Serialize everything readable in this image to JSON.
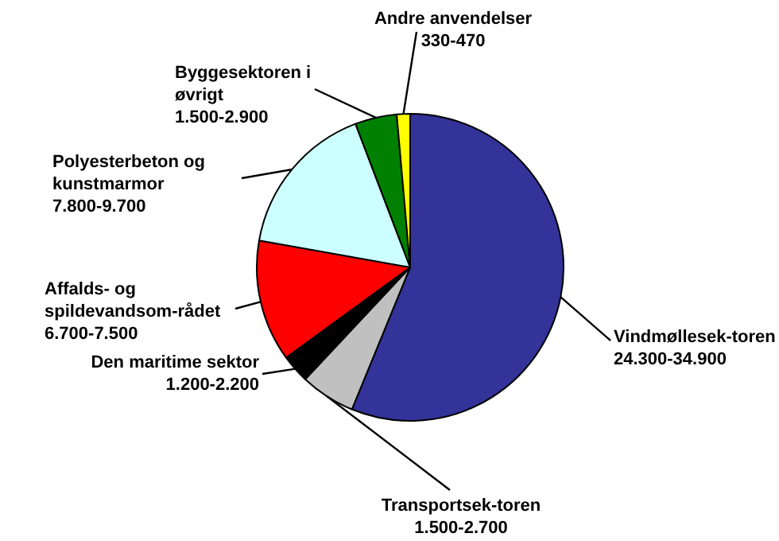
{
  "chart_data": {
    "type": "pie",
    "categories": [
      "Vindmøllesek-toren",
      "Transportsek-toren",
      "Den maritime sektor",
      "Affalds- og spildevandsom-rådet",
      "Polyesterbeton og kunstmarmor",
      "Byggesektoren i øvrigt",
      "Andre anvendelser"
    ],
    "values": [
      56.2,
      5.8,
      3.0,
      12.8,
      16.4,
      4.4,
      1.4
    ],
    "colors": [
      "#333399",
      "#c0c0c0",
      "#000000",
      "#ff0000",
      "#ccffff",
      "#008000",
      "#ffff00"
    ],
    "value_labels": [
      "24.300-34.900",
      "1.500-2.700",
      "1.200-2.200",
      "6.700-7.500",
      "7.800-9.700",
      "1.500-2.900",
      "330-470"
    ]
  }
}
